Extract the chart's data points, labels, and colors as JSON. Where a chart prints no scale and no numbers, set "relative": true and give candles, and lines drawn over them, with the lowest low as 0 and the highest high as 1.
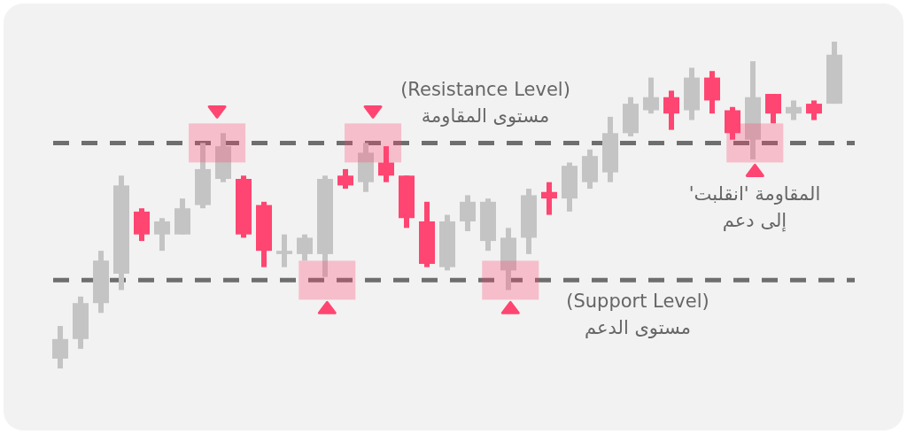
{
  "chart_data": {
    "type": "candlestick",
    "relative": true,
    "categories": [
      null,
      null,
      null,
      null,
      null,
      null,
      null,
      null,
      null,
      null,
      null,
      null,
      null,
      null,
      null,
      null,
      null,
      null,
      null,
      null,
      null,
      null,
      null,
      null,
      null,
      null,
      null,
      null,
      null,
      null,
      null,
      null,
      null,
      null,
      null,
      null,
      null,
      null,
      null
    ],
    "ohlc": [
      [
        0.03,
        0.13,
        0,
        0.09
      ],
      [
        0.09,
        0.22,
        0.06,
        0.2
      ],
      [
        0.2,
        0.36,
        0.17,
        0.33
      ],
      [
        0.29,
        0.59,
        0.24,
        0.56
      ],
      [
        0.48,
        0.49,
        0.39,
        0.41
      ],
      [
        0.41,
        0.46,
        0.36,
        0.45
      ],
      [
        0.41,
        0.52,
        0.41,
        0.49
      ],
      [
        0.5,
        0.69,
        0.49,
        0.61
      ],
      [
        0.58,
        0.72,
        0.57,
        0.68
      ],
      [
        0.58,
        0.59,
        0.4,
        0.41
      ],
      [
        0.5,
        0.51,
        0.31,
        0.36
      ],
      [
        0.35,
        0.41,
        0.31,
        0.36
      ],
      [
        0.35,
        0.41,
        0.33,
        0.4
      ],
      [
        0.35,
        0.59,
        0.28,
        0.58
      ],
      [
        0.59,
        0.61,
        0.55,
        0.56
      ],
      [
        0.57,
        0.69,
        0.54,
        0.66
      ],
      [
        0.63,
        0.68,
        0.57,
        0.59
      ],
      [
        0.59,
        0.59,
        0.43,
        0.46
      ],
      [
        0.45,
        0.51,
        0.31,
        0.32
      ],
      [
        0.31,
        0.47,
        0.3,
        0.45
      ],
      [
        0.45,
        0.53,
        0.42,
        0.51
      ],
      [
        0.39,
        0.52,
        0.36,
        0.51
      ],
      [
        0.3,
        0.43,
        0.24,
        0.4
      ],
      [
        0.4,
        0.55,
        0.35,
        0.53
      ],
      [
        0.54,
        0.57,
        0.47,
        0.52
      ],
      [
        0.52,
        0.63,
        0.48,
        0.62
      ],
      [
        0.57,
        0.67,
        0.55,
        0.65
      ],
      [
        0.6,
        0.77,
        0.57,
        0.72
      ],
      [
        0.72,
        0.83,
        0.71,
        0.81
      ],
      [
        0.79,
        0.89,
        0.78,
        0.83
      ],
      [
        0.83,
        0.85,
        0.73,
        0.78
      ],
      [
        0.79,
        0.92,
        0.76,
        0.89
      ],
      [
        0.89,
        0.91,
        0.78,
        0.82
      ],
      [
        0.79,
        0.8,
        0.7,
        0.72
      ],
      [
        0.7,
        0.94,
        0.64,
        0.83
      ],
      [
        0.84,
        0.84,
        0.75,
        0.78
      ],
      [
        0.78,
        0.82,
        0.76,
        0.8
      ],
      [
        0.81,
        0.82,
        0.76,
        0.78
      ],
      [
        0.81,
        1,
        0.81,
        0.96
      ]
    ],
    "colors": [
      "#c4c4c4",
      "#c4c4c4",
      "#c4c4c4",
      "#c4c4c4",
      "#ff4571",
      "#c4c4c4",
      "#c4c4c4",
      "#c4c4c4",
      "#c4c4c4",
      "#ff4571",
      "#ff4571",
      "#c4c4c4",
      "#c4c4c4",
      "#c4c4c4",
      "#ff4571",
      "#c4c4c4",
      "#ff4571",
      "#ff4571",
      "#ff4571",
      "#c4c4c4",
      "#c4c4c4",
      "#c4c4c4",
      "#c4c4c4",
      "#c4c4c4",
      "#ff4571",
      "#c4c4c4",
      "#c4c4c4",
      "#c4c4c4",
      "#c4c4c4",
      "#c4c4c4",
      "#ff4571",
      "#c4c4c4",
      "#ff4571",
      "#ff4571",
      "#c4c4c4",
      "#ff4571",
      "#c4c4c4",
      "#ff4571",
      "#c4c4c4"
    ],
    "ref_lines": [
      {
        "axis": "y",
        "value": 0.69,
        "label": "(Resistance Level)\nمستوى المقاومة",
        "color": "#6e6e6e",
        "line_style": "dashed"
      },
      {
        "axis": "y",
        "value": 0.27,
        "label": "(Support Level)\nمستوى الدعم",
        "color": "#6e6e6e",
        "line_style": "dashed"
      }
    ],
    "annotations": [
      "المقاومة 'انقلبت'\nإلى دعم"
    ]
  }
}
